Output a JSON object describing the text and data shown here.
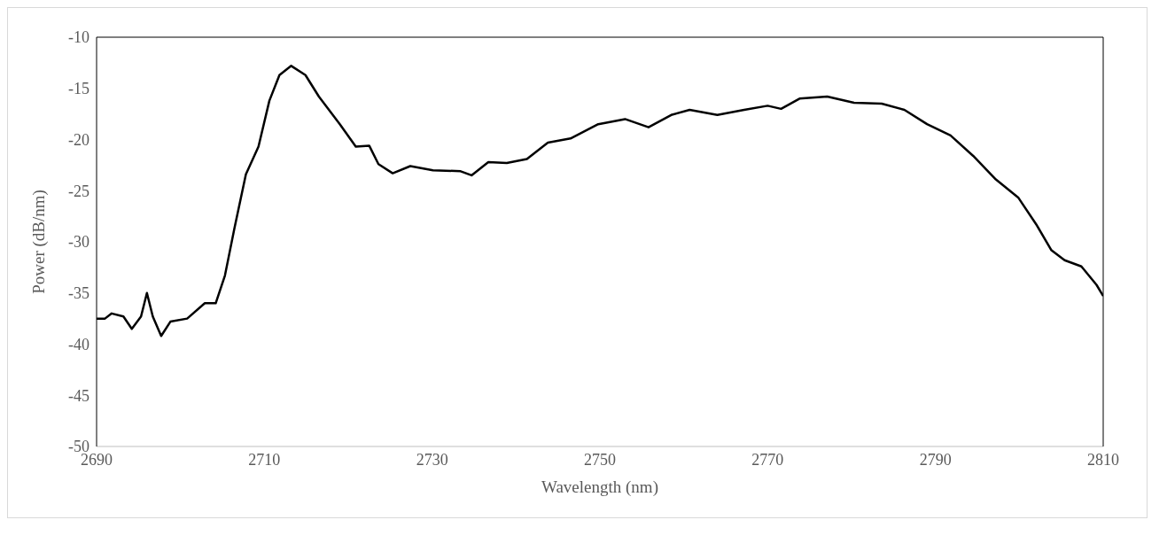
{
  "chart_data": {
    "type": "line",
    "xlabel": "Wavelength (nm)",
    "ylabel": "Power (dB/nm)",
    "xlim": [
      2690,
      2810
    ],
    "xticks": [
      2690,
      2710,
      2730,
      2750,
      2770,
      2790,
      2810
    ],
    "ylim": [
      -50,
      -10
    ],
    "yticks": [
      -50,
      -45,
      -40,
      -35,
      -30,
      -25,
      -20,
      -15,
      -10
    ],
    "grid": false,
    "legend": false,
    "marker": "none",
    "line_style": "solid",
    "series": [
      {
        "color": "#000000",
        "x": [
          2690,
          2691,
          2691.8,
          2693.2,
          2694.2,
          2695.3,
          2696,
          2696.7,
          2697.7,
          2698.8,
          2700.8,
          2702.9,
          2704.2,
          2705.3,
          2706.4,
          2707.8,
          2709.3,
          2710.6,
          2711.8,
          2713.2,
          2714.9,
          2716.5,
          2719,
          2720.9,
          2722.5,
          2723.6,
          2725.3,
          2727.4,
          2730.1,
          2733.4,
          2734.7,
          2736.7,
          2738.9,
          2741.3,
          2743.8,
          2746.5,
          2749.8,
          2753,
          2755.8,
          2758.5,
          2760.7,
          2764,
          2767.2,
          2770,
          2771.6,
          2773.8,
          2777.1,
          2780.3,
          2783.6,
          2786.3,
          2789,
          2791.8,
          2794.5,
          2797.2,
          2799.9,
          2802.1,
          2803.8,
          2805.4,
          2807.4,
          2809.2,
          2810
        ],
        "values": [
          -37.5,
          -37.5,
          -37,
          -37.3,
          -38.5,
          -37.3,
          -35,
          -37.3,
          -39.2,
          -37.8,
          -37.5,
          -36,
          -36,
          -33.3,
          -28.8,
          -23.4,
          -20.7,
          -16.2,
          -13.7,
          -12.8,
          -13.7,
          -15.8,
          -18.5,
          -20.7,
          -20.6,
          -22.4,
          -23.3,
          -22.6,
          -23,
          -23.1,
          -23.5,
          -22.2,
          -22.3,
          -21.9,
          -20.3,
          -19.9,
          -18.5,
          -18,
          -18.8,
          -17.6,
          -17.1,
          -17.6,
          -17.1,
          -16.7,
          -17,
          -16,
          -15.8,
          -16.4,
          -16.5,
          -17.1,
          -18.5,
          -19.6,
          -21.6,
          -23.9,
          -25.7,
          -28.4,
          -30.8,
          -31.8,
          -32.4,
          -34.2,
          -35.3
        ]
      }
    ]
  }
}
